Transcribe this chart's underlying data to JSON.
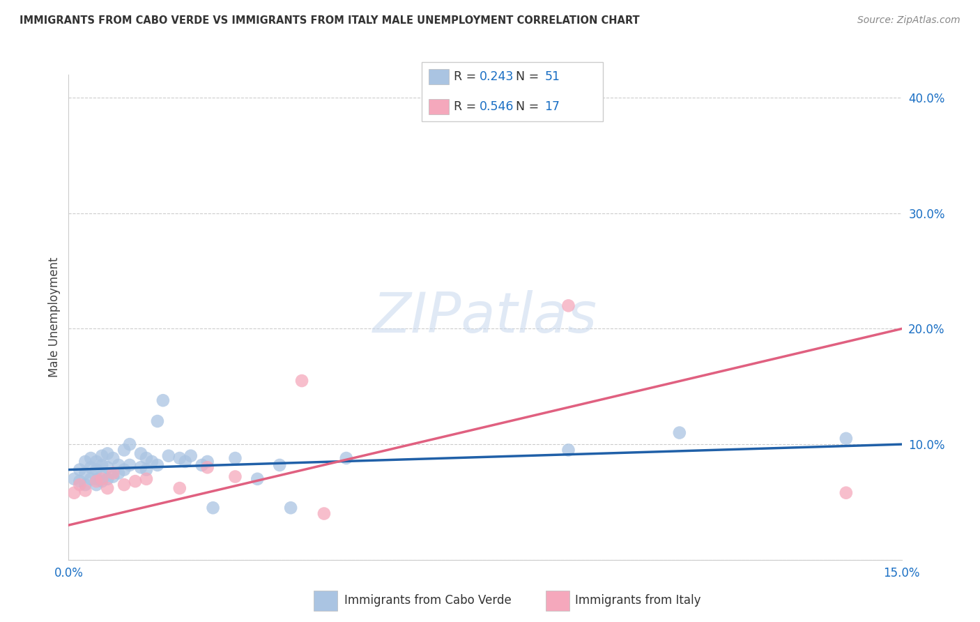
{
  "title": "IMMIGRANTS FROM CABO VERDE VS IMMIGRANTS FROM ITALY MALE UNEMPLOYMENT CORRELATION CHART",
  "source": "Source: ZipAtlas.com",
  "ylabel": "Male Unemployment",
  "xlim": [
    0.0,
    0.15
  ],
  "ylim": [
    0.0,
    0.42
  ],
  "xticks": [
    0.0,
    0.025,
    0.05,
    0.075,
    0.1,
    0.125,
    0.15
  ],
  "xtick_labels": [
    "0.0%",
    "",
    "",
    "",
    "",
    "",
    "15.0%"
  ],
  "yticks": [
    0.0,
    0.1,
    0.2,
    0.3,
    0.4
  ],
  "ytick_labels": [
    "",
    "10.0%",
    "20.0%",
    "30.0%",
    "40.0%"
  ],
  "cabo_verde_color": "#aac4e2",
  "italy_color": "#f5a8bc",
  "cabo_verde_line_color": "#2060a8",
  "italy_line_color": "#e06080",
  "cabo_verde_label_color": "#1a6fc4",
  "R_cabo": 0.243,
  "N_cabo": 51,
  "R_italy": 0.546,
  "N_italy": 17,
  "watermark": "ZIPatlas",
  "cabo_verde_x": [
    0.001,
    0.002,
    0.002,
    0.003,
    0.003,
    0.003,
    0.004,
    0.004,
    0.004,
    0.005,
    0.005,
    0.005,
    0.005,
    0.006,
    0.006,
    0.006,
    0.006,
    0.007,
    0.007,
    0.007,
    0.008,
    0.008,
    0.009,
    0.009,
    0.01,
    0.01,
    0.011,
    0.011,
    0.013,
    0.013,
    0.014,
    0.014,
    0.015,
    0.016,
    0.016,
    0.017,
    0.018,
    0.02,
    0.021,
    0.022,
    0.024,
    0.025,
    0.026,
    0.03,
    0.034,
    0.038,
    0.04,
    0.05,
    0.09,
    0.11,
    0.14
  ],
  "cabo_verde_y": [
    0.07,
    0.068,
    0.078,
    0.065,
    0.075,
    0.085,
    0.07,
    0.08,
    0.088,
    0.065,
    0.07,
    0.078,
    0.085,
    0.068,
    0.075,
    0.082,
    0.09,
    0.07,
    0.08,
    0.092,
    0.072,
    0.088,
    0.075,
    0.082,
    0.078,
    0.095,
    0.082,
    0.1,
    0.08,
    0.092,
    0.078,
    0.088,
    0.085,
    0.082,
    0.12,
    0.138,
    0.09,
    0.088,
    0.085,
    0.09,
    0.082,
    0.085,
    0.045,
    0.088,
    0.07,
    0.082,
    0.045,
    0.088,
    0.095,
    0.11,
    0.105
  ],
  "italy_x": [
    0.001,
    0.002,
    0.003,
    0.005,
    0.006,
    0.007,
    0.008,
    0.01,
    0.012,
    0.014,
    0.02,
    0.025,
    0.03,
    0.042,
    0.046,
    0.09,
    0.14
  ],
  "italy_y": [
    0.058,
    0.065,
    0.06,
    0.068,
    0.07,
    0.062,
    0.075,
    0.065,
    0.068,
    0.07,
    0.062,
    0.08,
    0.072,
    0.155,
    0.04,
    0.22,
    0.058
  ],
  "italy_line_y0": 0.03,
  "italy_line_y1": 0.2,
  "cabo_line_y0": 0.078,
  "cabo_line_y1": 0.1
}
